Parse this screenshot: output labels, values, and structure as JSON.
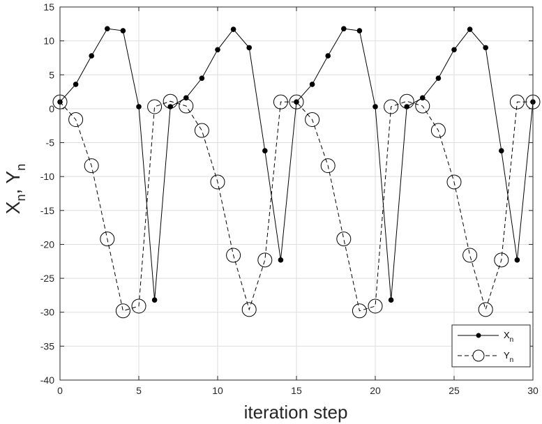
{
  "chart_data": {
    "type": "line",
    "xlabel": "iteration step",
    "ylabel_main": "X",
    "ylabel_sub": "n",
    "ylabel_sep": ", ",
    "ylabel_main2": "Y",
    "ylabel_sub2": "n",
    "xlim": [
      0,
      30
    ],
    "ylim": [
      -40,
      15
    ],
    "xticks": [
      0,
      5,
      10,
      15,
      20,
      25,
      30
    ],
    "yticks": [
      -40,
      -35,
      -30,
      -25,
      -20,
      -15,
      -10,
      -5,
      0,
      5,
      10,
      15
    ],
    "grid": true,
    "legend": "bottom-right",
    "x": [
      0,
      1,
      2,
      3,
      4,
      5,
      6,
      7,
      8,
      9,
      10,
      11,
      12,
      13,
      14,
      15,
      16,
      17,
      18,
      19,
      20,
      21,
      22,
      23,
      24,
      25,
      26,
      27,
      28,
      29,
      30
    ],
    "series": [
      {
        "name": "X",
        "name_sub": "n",
        "style": "solid",
        "marker": "filled-dot",
        "color": "#000000",
        "values": [
          1.0,
          3.6,
          7.8,
          11.8,
          11.5,
          0.3,
          -28.2,
          0.3,
          1.6,
          4.5,
          8.7,
          11.7,
          9.0,
          -6.2,
          -22.3,
          1.0,
          3.6,
          7.8,
          11.8,
          11.5,
          0.3,
          -28.2,
          0.3,
          1.6,
          4.5,
          8.7,
          11.7,
          9.0,
          -6.2,
          -22.3,
          1.0
        ]
      },
      {
        "name": "Y",
        "name_sub": "n",
        "style": "dashed",
        "marker": "open-circle",
        "color": "#000000",
        "values": [
          1.0,
          -1.6,
          -8.4,
          -19.2,
          -29.8,
          -29.1,
          0.3,
          1.1,
          0.4,
          -3.2,
          -10.8,
          -21.6,
          -29.6,
          -22.3,
          1.0,
          1.0,
          -1.6,
          -8.4,
          -19.2,
          -29.8,
          -29.1,
          0.3,
          1.1,
          0.4,
          -3.2,
          -10.8,
          -21.6,
          -29.6,
          -22.3,
          1.0,
          1.0
        ]
      }
    ]
  }
}
